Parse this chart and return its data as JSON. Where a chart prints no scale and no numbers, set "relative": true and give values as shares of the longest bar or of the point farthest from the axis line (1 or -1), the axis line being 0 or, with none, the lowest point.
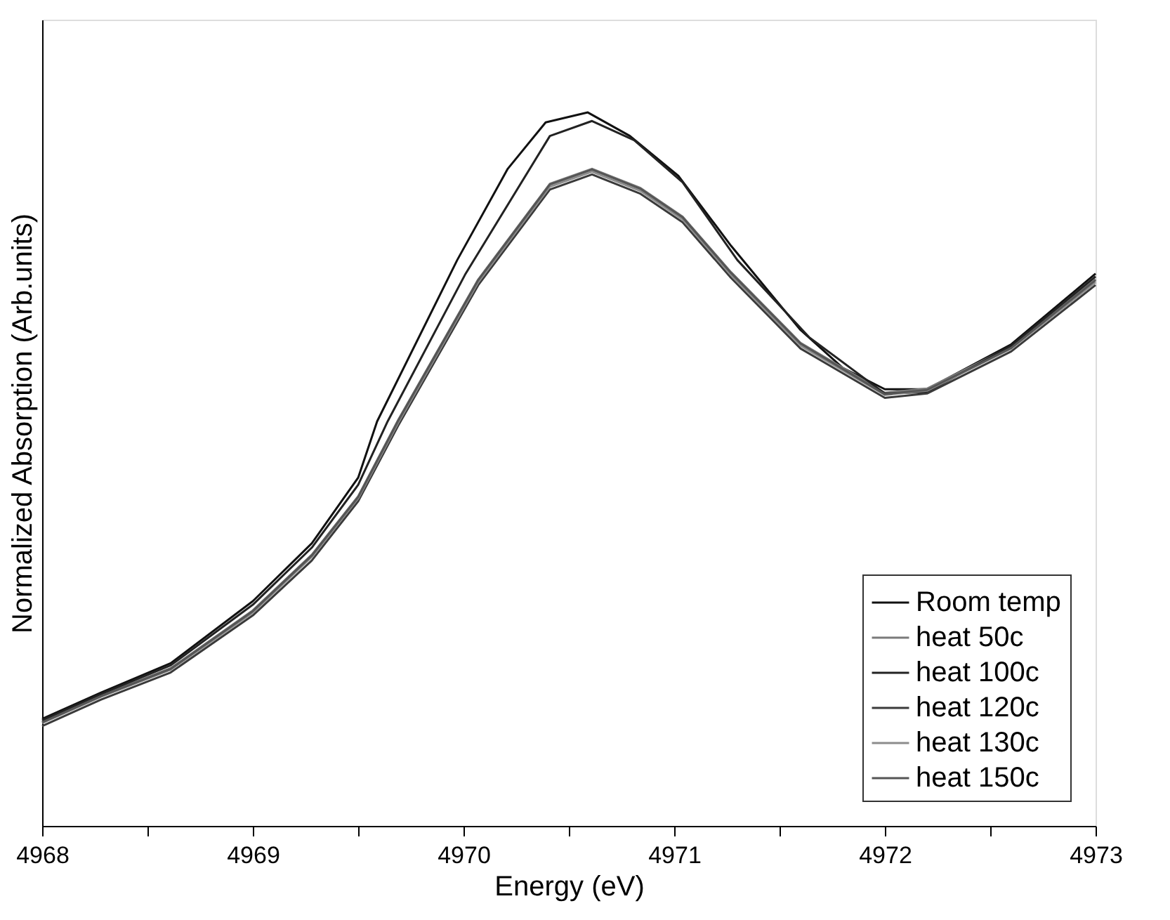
{
  "chart_data": {
    "type": "line",
    "xlabel": "Energy (eV)",
    "ylabel": "Normalized Absorption (Arb.units)",
    "relative": true,
    "xlim": [
      4968,
      4973
    ],
    "xticks": [
      4968,
      {
        "value": 4968.5,
        "label": null
      },
      4969,
      {
        "value": 4969.5,
        "label": null
      },
      4970,
      {
        "value": 4970.5,
        "label": null
      },
      4971,
      {
        "value": 4971.5,
        "label": null
      },
      4972,
      {
        "value": 4972.5,
        "label": null
      },
      4973
    ],
    "tick_labels": "x",
    "legend": "bottom right",
    "grid": false,
    "marker": "none",
    "line_style": "solid",
    "series": [
      {
        "name": "Room temp",
        "color": "#111111",
        "x": [
          4968.0,
          4968.28,
          4968.61,
          4969.0,
          4969.28,
          4969.5,
          4969.59,
          4969.97,
          4970.21,
          4970.39,
          4970.59,
          4970.79,
          4971.02,
          4971.27,
          4971.6,
          4971.8,
          4972.0,
          4972.2,
          4972.6,
          4973.0
        ],
        "values": [
          0.15,
          0.187,
          0.228,
          0.315,
          0.396,
          0.488,
          0.567,
          0.793,
          0.921,
          0.986,
          1.0,
          0.967,
          0.911,
          0.813,
          0.695,
          0.642,
          0.612,
          0.612,
          0.675,
          0.774
        ]
      },
      {
        "name": "heat 50c",
        "color": "#7a7a7a",
        "x": [
          4968.0,
          4968.28,
          4968.61,
          4969.0,
          4969.28,
          4969.5,
          4969.69,
          4970.07,
          4970.41,
          4970.61,
          4970.84,
          4971.04,
          4971.27,
          4971.6,
          4972.0,
          4972.2,
          4972.6,
          4973.0
        ],
        "values": [
          0.146,
          0.183,
          0.221,
          0.302,
          0.38,
          0.462,
          0.569,
          0.766,
          0.9,
          0.921,
          0.894,
          0.854,
          0.776,
          0.677,
          0.607,
          0.613,
          0.672,
          0.766
        ]
      },
      {
        "name": "heat 100c",
        "color": "#222222",
        "x": [
          4968.0,
          4968.28,
          4968.61,
          4969.0,
          4969.28,
          4969.5,
          4969.64,
          4970.01,
          4970.41,
          4970.61,
          4970.81,
          4971.04,
          4971.3,
          4971.64,
          4972.0,
          4972.2,
          4972.6,
          4973.0
        ],
        "values": [
          0.148,
          0.185,
          0.225,
          0.31,
          0.39,
          0.478,
          0.567,
          0.774,
          0.967,
          0.988,
          0.961,
          0.902,
          0.793,
          0.685,
          0.606,
          0.608,
          0.673,
          0.77
        ]
      },
      {
        "name": "heat 120c",
        "color": "#3a3a3a",
        "x": [
          4968.0,
          4968.28,
          4968.61,
          4969.0,
          4969.28,
          4969.5,
          4969.69,
          4970.07,
          4970.41,
          4970.61,
          4970.84,
          4971.04,
          4971.27,
          4971.6,
          4972.0,
          4972.2,
          4972.6,
          4973.0
        ],
        "values": [
          0.14,
          0.177,
          0.215,
          0.295,
          0.372,
          0.455,
          0.561,
          0.758,
          0.892,
          0.913,
          0.886,
          0.846,
          0.768,
          0.669,
          0.6,
          0.606,
          0.665,
          0.758
        ]
      },
      {
        "name": "heat 130c",
        "color": "#8c8c8c",
        "x": [
          4968.0,
          4968.28,
          4968.61,
          4969.0,
          4969.28,
          4969.5,
          4969.69,
          4970.07,
          4970.41,
          4970.61,
          4970.84,
          4971.04,
          4971.27,
          4971.6,
          4972.0,
          4972.2,
          4972.6,
          4973.0
        ],
        "values": [
          0.144,
          0.181,
          0.219,
          0.299,
          0.377,
          0.459,
          0.565,
          0.762,
          0.896,
          0.917,
          0.89,
          0.85,
          0.772,
          0.673,
          0.604,
          0.61,
          0.669,
          0.762
        ]
      },
      {
        "name": "heat 150c",
        "color": "#555555",
        "x": [
          4968.0,
          4968.28,
          4968.61,
          4969.0,
          4969.28,
          4969.5,
          4969.69,
          4970.07,
          4970.41,
          4970.61,
          4970.84,
          4971.04,
          4971.27,
          4971.6,
          4972.0,
          4972.2,
          4972.6,
          4973.0
        ],
        "values": [
          0.145,
          0.182,
          0.22,
          0.301,
          0.379,
          0.461,
          0.568,
          0.765,
          0.899,
          0.92,
          0.893,
          0.853,
          0.775,
          0.676,
          0.605,
          0.611,
          0.67,
          0.765
        ]
      }
    ]
  }
}
